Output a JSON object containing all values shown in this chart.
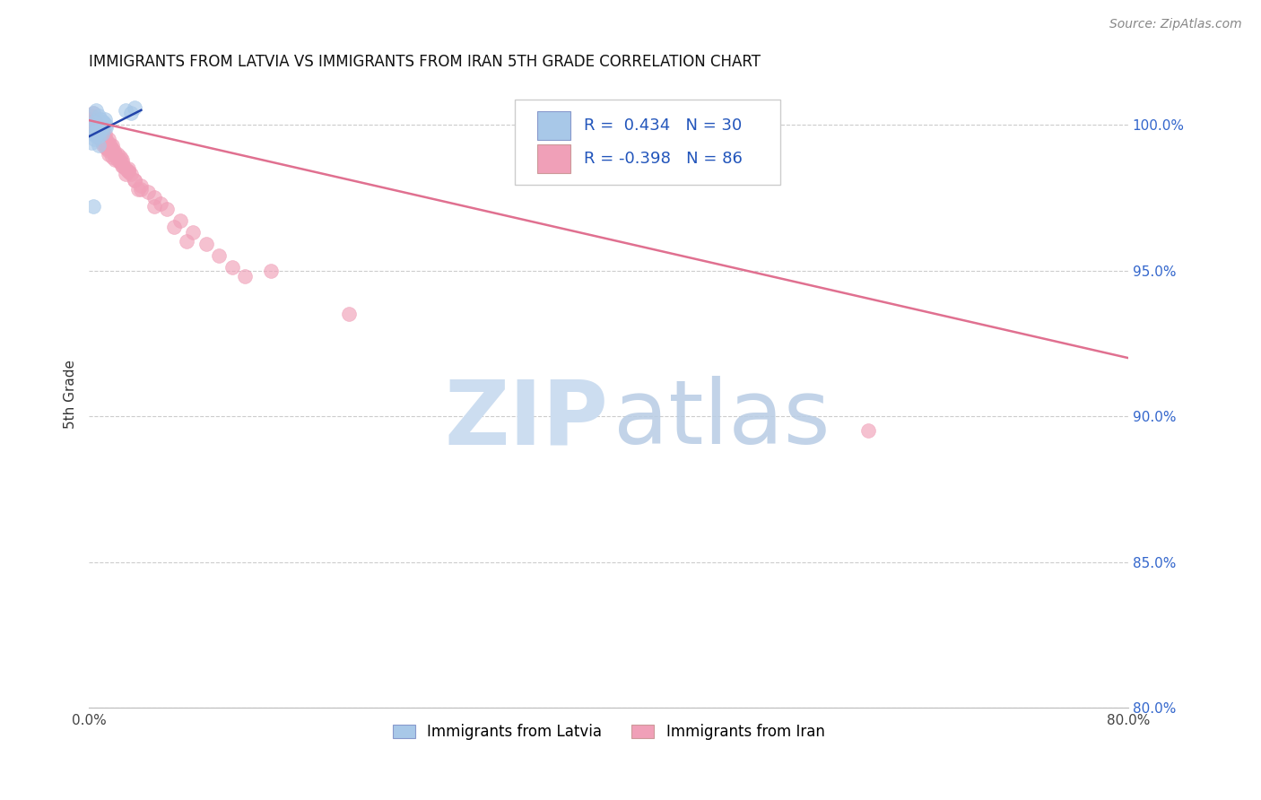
{
  "title": "IMMIGRANTS FROM LATVIA VS IMMIGRANTS FROM IRAN 5TH GRADE CORRELATION CHART",
  "source": "Source: ZipAtlas.com",
  "ylabel": "5th Grade",
  "xlim": [
    0.0,
    80.0
  ],
  "ylim": [
    80.0,
    101.5
  ],
  "yticks": [
    80.0,
    85.0,
    90.0,
    95.0,
    100.0
  ],
  "ytick_labels": [
    "80.0%",
    "85.0%",
    "90.0%",
    "95.0%",
    "100.0%"
  ],
  "xticks": [
    0.0,
    10.0,
    20.0,
    30.0,
    40.0,
    50.0,
    60.0,
    70.0,
    80.0
  ],
  "color_latvia": "#a8c8e8",
  "color_iran": "#f0a0b8",
  "color_line_latvia": "#2244aa",
  "color_line_iran": "#e07090",
  "background_color": "#ffffff",
  "scatter_latvia_x": [
    0.3,
    0.5,
    0.7,
    0.9,
    1.1,
    1.3,
    0.2,
    0.4,
    0.6,
    0.8,
    1.0,
    1.2,
    0.3,
    0.5,
    0.7,
    0.9,
    1.1,
    0.4,
    0.6,
    0.8,
    0.2,
    0.5,
    0.8,
    1.0,
    1.3,
    2.8,
    3.2,
    3.5,
    0.3,
    0.7
  ],
  "scatter_latvia_y": [
    100.4,
    100.5,
    100.3,
    100.2,
    100.1,
    100.0,
    99.9,
    100.1,
    100.0,
    99.8,
    99.9,
    100.2,
    99.7,
    99.8,
    99.6,
    99.9,
    100.1,
    99.5,
    99.7,
    99.8,
    99.4,
    99.6,
    99.8,
    99.7,
    99.9,
    100.5,
    100.4,
    100.6,
    97.2,
    99.3
  ],
  "scatter_iran_x": [
    0.2,
    0.3,
    0.4,
    0.5,
    0.6,
    0.7,
    0.8,
    0.9,
    1.0,
    1.1,
    1.2,
    1.3,
    1.4,
    1.5,
    1.6,
    1.7,
    1.8,
    1.9,
    2.0,
    2.1,
    2.2,
    2.3,
    2.4,
    2.5,
    2.6,
    2.8,
    3.0,
    3.2,
    3.5,
    4.0,
    4.5,
    5.0,
    5.5,
    6.0,
    7.0,
    8.0,
    9.0,
    10.0,
    11.0,
    12.0,
    0.2,
    0.4,
    0.6,
    0.8,
    1.0,
    1.2,
    1.4,
    1.6,
    1.8,
    2.0,
    2.5,
    3.0,
    4.0,
    5.0,
    6.5,
    7.5,
    0.3,
    0.5,
    0.7,
    1.1,
    1.3,
    1.5,
    2.2,
    3.5,
    0.4,
    0.8,
    1.2,
    1.8,
    2.4,
    3.0,
    0.3,
    0.6,
    0.9,
    1.5,
    2.0,
    2.8,
    0.5,
    1.0,
    1.8,
    0.7,
    1.4,
    2.5,
    14.0,
    20.0,
    60.0,
    3.8
  ],
  "scatter_iran_y": [
    100.3,
    100.4,
    100.2,
    100.1,
    100.0,
    99.9,
    99.8,
    99.7,
    99.8,
    99.6,
    99.7,
    99.5,
    99.4,
    99.5,
    99.3,
    99.2,
    99.3,
    99.1,
    99.0,
    98.9,
    99.0,
    98.8,
    98.7,
    98.8,
    98.6,
    98.5,
    98.4,
    98.3,
    98.1,
    97.9,
    97.7,
    97.5,
    97.3,
    97.1,
    96.7,
    96.3,
    95.9,
    95.5,
    95.1,
    94.8,
    100.2,
    100.1,
    99.9,
    99.8,
    99.6,
    99.5,
    99.4,
    99.2,
    99.1,
    99.0,
    98.7,
    98.4,
    97.8,
    97.2,
    96.5,
    96.0,
    100.0,
    99.8,
    99.6,
    99.3,
    99.2,
    99.0,
    98.8,
    98.1,
    99.9,
    99.7,
    99.5,
    99.1,
    98.9,
    98.5,
    100.1,
    99.8,
    99.5,
    99.1,
    98.8,
    98.3,
    99.7,
    99.4,
    98.9,
    99.6,
    99.2,
    98.6,
    95.0,
    93.5,
    89.5,
    97.8
  ],
  "iran_line_x": [
    0.0,
    80.0
  ],
  "iran_line_y": [
    100.15,
    92.0
  ],
  "latvia_line_x": [
    0.0,
    4.0
  ],
  "latvia_line_y": [
    99.6,
    100.5
  ]
}
